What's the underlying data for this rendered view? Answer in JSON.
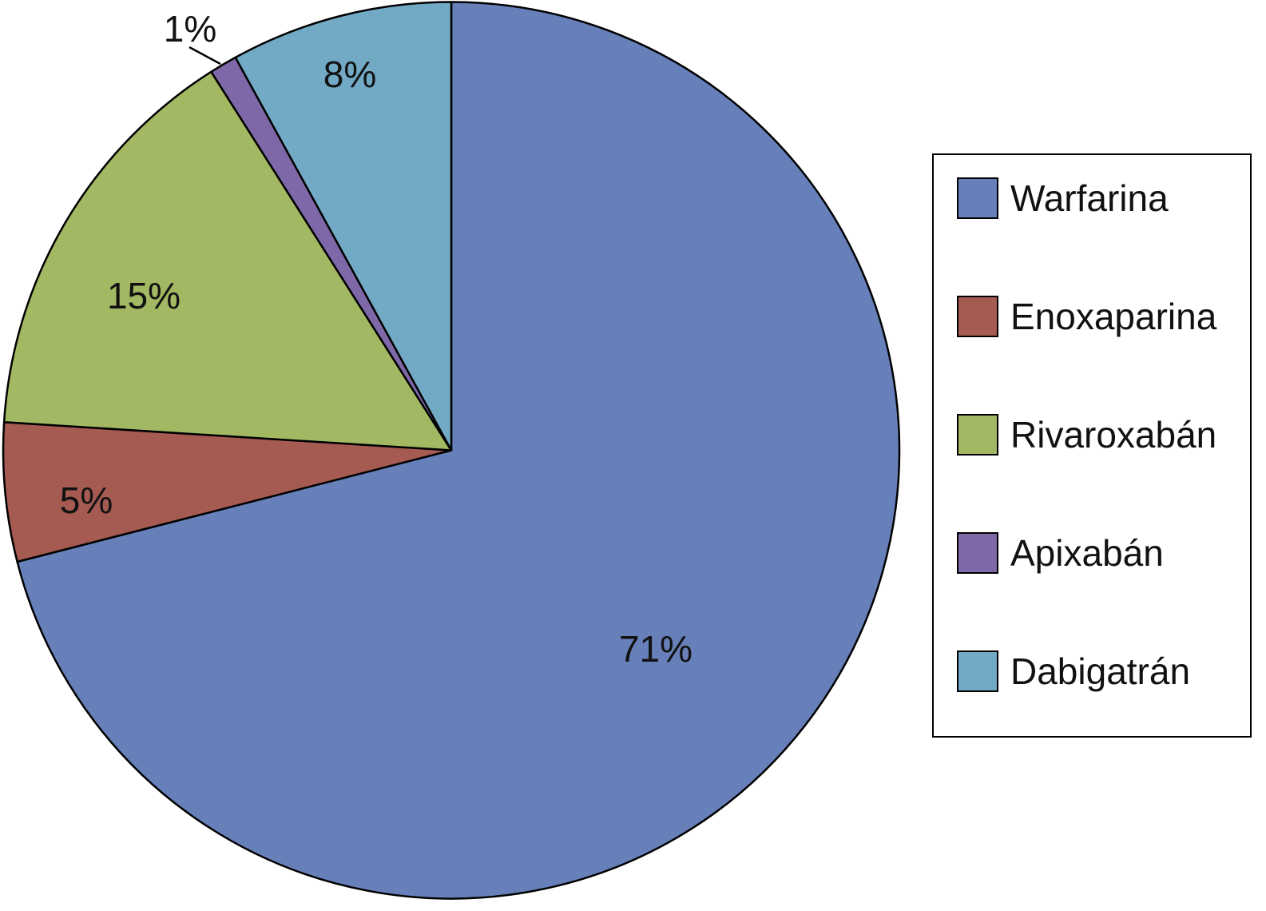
{
  "chart_data": {
    "type": "pie",
    "categories": [
      "Warfarina",
      "Enoxaparina",
      "Rivaroxabán",
      "Apixabán",
      "Dabigatrán"
    ],
    "values": [
      71,
      5,
      15,
      1,
      8
    ],
    "data_labels": [
      "71%",
      "5%",
      "15%",
      "1%",
      "8%"
    ],
    "colors": [
      "#6780BA",
      "#A55A52",
      "#A2B862",
      "#7F68A8",
      "#72A9C5"
    ],
    "legend": "right"
  }
}
